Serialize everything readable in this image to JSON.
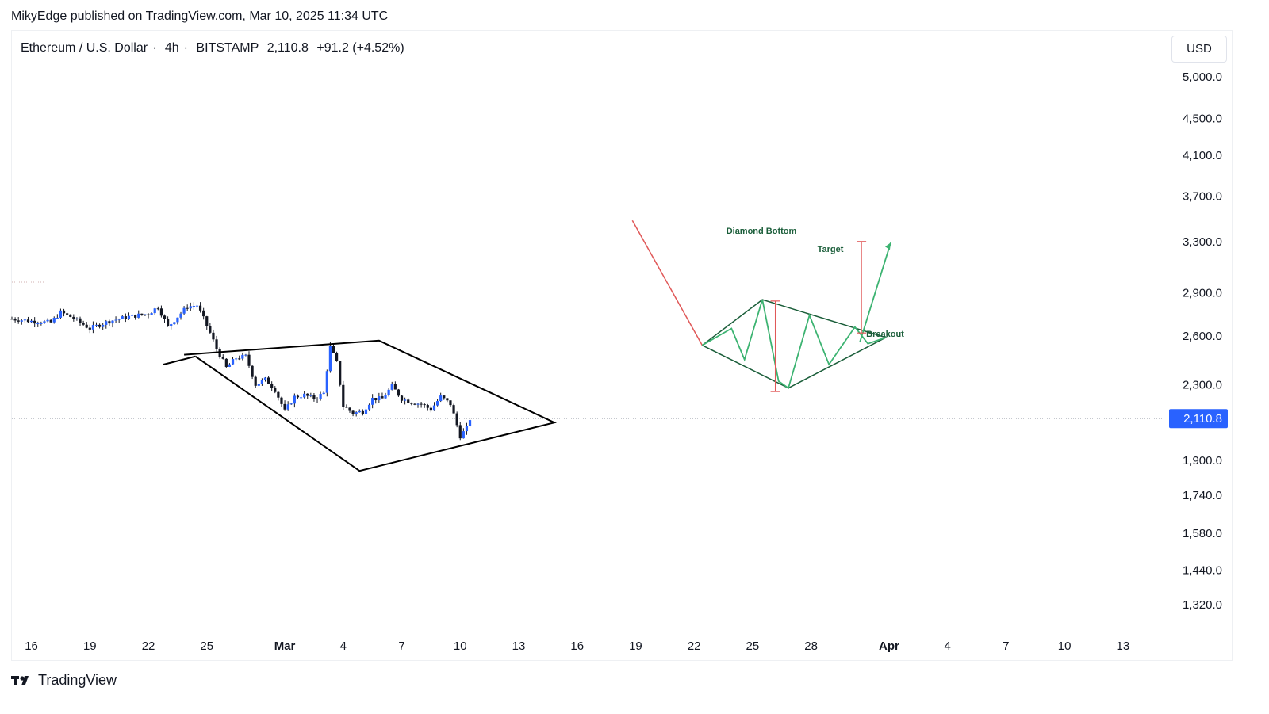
{
  "publisher_line": "MikyEdge published on TradingView.com, Mar 10, 2025 11:34 UTC",
  "legend": {
    "symbol": "Ethereum / U.S. Dollar",
    "interval": "4h",
    "exchange": "BITSTAMP",
    "price": "2,110.8",
    "change": "+91.2 (+4.52%)"
  },
  "currency_button": "USD",
  "branding": "TradingView",
  "chart_data": {
    "type": "candlestick",
    "y_scale": "log",
    "price_axis_labels": [
      "5,000.0",
      "4,500.0",
      "4,100.0",
      "3,700.0",
      "3,300.0",
      "2,900.0",
      "2,600.0",
      "2,300.0",
      "1,900.0",
      "1,740.0",
      "1,580.0",
      "1,440.0",
      "1,320.0"
    ],
    "price_axis_values": [
      5000,
      4500,
      4100,
      3700,
      3300,
      2900,
      2600,
      2300,
      1900,
      1740,
      1580,
      1440,
      1320
    ],
    "current_price_label": "2,110.8",
    "current_price": 2110.8,
    "time_axis_labels": [
      "16",
      "19",
      "22",
      "25",
      "Mar",
      "4",
      "7",
      "10",
      "13",
      "16",
      "19",
      "22",
      "25",
      "28",
      "Apr",
      "4",
      "7",
      "10",
      "13"
    ],
    "time_axis_bold": [
      "Mar",
      "Apr"
    ],
    "x_start": "2025-02-15",
    "x_end": "2025-04-15",
    "close_path": [
      [
        "2025-02-15",
        2715
      ],
      [
        "2025-02-16",
        2700
      ],
      [
        "2025-02-17",
        2690
      ],
      [
        "2025-02-17T12",
        2760
      ],
      [
        "2025-02-18",
        2730
      ],
      [
        "2025-02-19",
        2650
      ],
      [
        "2025-02-20",
        2700
      ],
      [
        "2025-02-21",
        2730
      ],
      [
        "2025-02-22",
        2750
      ],
      [
        "2025-02-22T12",
        2800
      ],
      [
        "2025-02-23",
        2660
      ],
      [
        "2025-02-23T12",
        2730
      ],
      [
        "2025-02-24",
        2800
      ],
      [
        "2025-02-24T12",
        2810
      ],
      [
        "2025-02-25",
        2670
      ],
      [
        "2025-02-25T12",
        2520
      ],
      [
        "2025-02-26",
        2400
      ],
      [
        "2025-02-26T12",
        2460
      ],
      [
        "2025-02-27",
        2470
      ],
      [
        "2025-02-27T12",
        2300
      ],
      [
        "2025-02-28",
        2330
      ],
      [
        "2025-02-28T12",
        2270
      ],
      [
        "2025-03-01",
        2150
      ],
      [
        "2025-03-01T12",
        2230
      ],
      [
        "2025-03-02",
        2240
      ],
      [
        "2025-03-02T12",
        2220
      ],
      [
        "2025-03-03",
        2250
      ],
      [
        "2025-03-03T08",
        2530
      ],
      [
        "2025-03-03T16",
        2430
      ],
      [
        "2025-03-04",
        2180
      ],
      [
        "2025-03-04T12",
        2140
      ],
      [
        "2025-03-05",
        2150
      ],
      [
        "2025-03-05T12",
        2220
      ],
      [
        "2025-03-06",
        2220
      ],
      [
        "2025-03-06T12",
        2290
      ],
      [
        "2025-03-07",
        2220
      ],
      [
        "2025-03-07T12",
        2200
      ],
      [
        "2025-03-08",
        2190
      ],
      [
        "2025-03-08T12",
        2160
      ],
      [
        "2025-03-09",
        2230
      ],
      [
        "2025-03-09T12",
        2190
      ],
      [
        "2025-03-10",
        2020
      ],
      [
        "2025-03-10T08",
        2060
      ],
      [
        "2025-03-10T12",
        2110
      ]
    ],
    "series_color": "#2962ff",
    "drawings": {
      "price_diamond": {
        "color": "#000000",
        "points": [
          [
            "2025-02-23T20",
            2480
          ],
          [
            "2025-03-05T20",
            2570
          ],
          [
            "2025-03-14T20",
            2090
          ],
          [
            "2025-03-04T20",
            1850
          ],
          [
            "2025-02-24T10",
            2470
          ]
        ],
        "extension": [
          [
            "2025-02-23T20",
            2480
          ],
          [
            "2025-02-24T10",
            2470
          ]
        ]
      },
      "template": {
        "title": "Diamond Bottom",
        "target_label": "Target",
        "breakout_label": "Breakout",
        "downtrend_color": "#e05858",
        "pattern_color": "#3cb371",
        "outline_color": "#1b5e3a",
        "measure_color": "#e05858",
        "downtrend": [
          [
            "2025-03-18T20",
            3480
          ],
          [
            "2025-03-22T10",
            2540
          ]
        ],
        "outline": [
          [
            "2025-03-22T10",
            2540
          ],
          [
            "2025-03-25T12",
            2850
          ],
          [
            "2025-03-31T20",
            2590
          ],
          [
            "2025-03-26T20",
            2280
          ],
          [
            "2025-03-22T10",
            2540
          ]
        ],
        "zigzag": [
          [
            "2025-03-22T10",
            2540
          ],
          [
            "2025-03-23T22",
            2650
          ],
          [
            "2025-03-24T14",
            2450
          ],
          [
            "2025-03-25T12",
            2850
          ],
          [
            "2025-03-26T08",
            2320
          ],
          [
            "2025-03-26T20",
            2280
          ],
          [
            "2025-03-27T22",
            2740
          ],
          [
            "2025-03-28T22",
            2420
          ],
          [
            "2025-03-30T06",
            2660
          ],
          [
            "2025-03-30T22",
            2550
          ],
          [
            "2025-03-31T20",
            2590
          ]
        ],
        "breakout_arrow": [
          [
            "2025-03-30T12",
            2560
          ],
          [
            "2025-04-01T02",
            3290
          ]
        ],
        "measure_diamond": [
          [
            "2025-03-26T04",
            2840
          ],
          [
            "2025-03-26T04",
            2260
          ]
        ],
        "measure_target": [
          [
            "2025-03-30T14",
            2620
          ],
          [
            "2025-03-30T14",
            3300
          ]
        ]
      }
    }
  }
}
